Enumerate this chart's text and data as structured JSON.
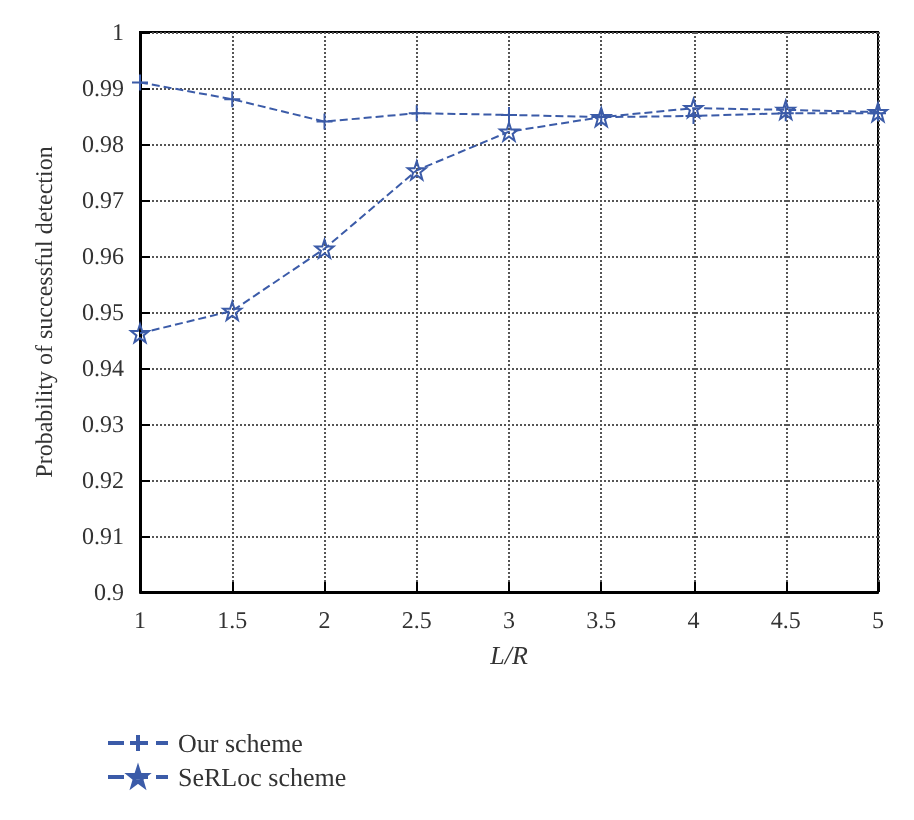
{
  "chart_data": {
    "type": "line",
    "xlabel": "L/R",
    "ylabel": "Probability of successful detection",
    "x": [
      1,
      1.5,
      2,
      2.5,
      3,
      3.5,
      4,
      4.5,
      5
    ],
    "series": [
      {
        "name": "Our scheme",
        "color": "#3b5ba8",
        "marker": "cross",
        "values": [
          0.991,
          0.988,
          0.984,
          0.9855,
          0.9852,
          0.9848,
          0.985,
          0.9855,
          0.9855
        ]
      },
      {
        "name": "SeRLoc scheme",
        "color": "#3b5ba8",
        "marker": "star",
        "values": [
          0.9462,
          0.9502,
          0.9613,
          0.9753,
          0.9822,
          0.9848,
          0.9864,
          0.9861,
          0.9857
        ]
      }
    ],
    "xlim": [
      1,
      5
    ],
    "xticks": [
      1,
      1.5,
      2,
      2.5,
      3,
      3.5,
      4,
      4.5,
      5
    ],
    "ylim": [
      0.9,
      1
    ],
    "yticks": [
      0.9,
      0.91,
      0.92,
      0.93,
      0.94,
      0.95,
      0.96,
      0.97,
      0.98,
      0.99,
      1
    ],
    "grid": true,
    "legend": "bottom left",
    "line_style": "dashed"
  }
}
